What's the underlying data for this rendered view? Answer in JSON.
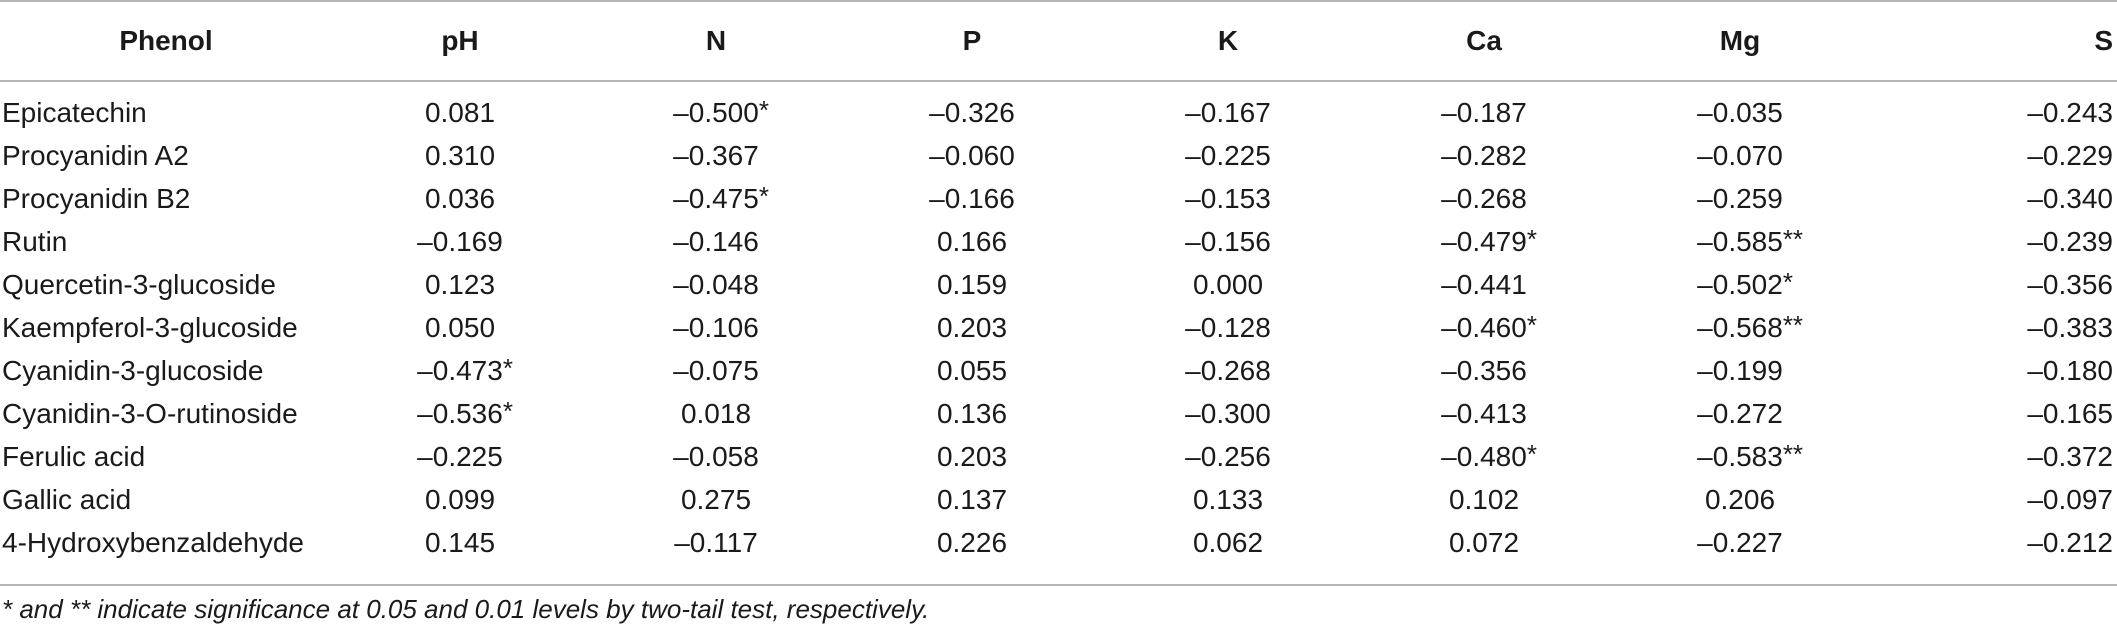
{
  "table": {
    "headers": [
      "Phenol",
      "pH",
      "N",
      "P",
      "K",
      "Ca",
      "Mg",
      "S"
    ],
    "rows": [
      {
        "name": "Epicatechin",
        "values": [
          "0.081",
          "–0.500",
          "–0.326",
          "–0.167",
          "–0.187",
          "–0.035",
          "–0.243"
        ],
        "marks": [
          "",
          "*",
          "",
          "",
          "",
          "",
          ""
        ]
      },
      {
        "name": "Procyanidin A2",
        "values": [
          "0.310",
          "–0.367",
          "–0.060",
          "–0.225",
          "–0.282",
          "–0.070",
          "–0.229"
        ],
        "marks": [
          "",
          "",
          "",
          "",
          "",
          "",
          ""
        ]
      },
      {
        "name": "Procyanidin B2",
        "values": [
          "0.036",
          "–0.475",
          "–0.166",
          "–0.153",
          "–0.268",
          "–0.259",
          "–0.340"
        ],
        "marks": [
          "",
          "*",
          "",
          "",
          "",
          "",
          ""
        ]
      },
      {
        "name": "Rutin",
        "values": [
          "–0.169",
          "–0.146",
          "0.166",
          "–0.156",
          "–0.479",
          "–0.585",
          "–0.239"
        ],
        "marks": [
          "",
          "",
          "",
          "",
          "*",
          "**",
          ""
        ]
      },
      {
        "name": "Quercetin-3-glucoside",
        "values": [
          "0.123",
          "–0.048",
          "0.159",
          "0.000",
          "–0.441",
          "–0.502",
          "–0.356"
        ],
        "marks": [
          "",
          "",
          "",
          "",
          "",
          "*",
          ""
        ]
      },
      {
        "name": "Kaempferol-3-glucoside",
        "values": [
          "0.050",
          "–0.106",
          "0.203",
          "–0.128",
          "–0.460",
          "–0.568",
          "–0.383"
        ],
        "marks": [
          "",
          "",
          "",
          "",
          "*",
          "**",
          ""
        ]
      },
      {
        "name": "Cyanidin-3-glucoside",
        "values": [
          "–0.473",
          "–0.075",
          "0.055",
          "–0.268",
          "–0.356",
          "–0.199",
          "–0.180"
        ],
        "marks": [
          "*",
          "",
          "",
          "",
          "",
          "",
          ""
        ]
      },
      {
        "name": "Cyanidin-3-O-rutinoside",
        "values": [
          "–0.536",
          "0.018",
          "0.136",
          "–0.300",
          "–0.413",
          "–0.272",
          "–0.165"
        ],
        "marks": [
          "*",
          "",
          "",
          "",
          "",
          "",
          ""
        ]
      },
      {
        "name": "Ferulic acid",
        "values": [
          "–0.225",
          "–0.058",
          "0.203",
          "–0.256",
          "–0.480",
          "–0.583",
          "–0.372"
        ],
        "marks": [
          "",
          "",
          "",
          "",
          "*",
          "**",
          ""
        ]
      },
      {
        "name": "Gallic acid",
        "values": [
          "0.099",
          "0.275",
          "0.137",
          "0.133",
          "0.102",
          "0.206",
          "–0.097"
        ],
        "marks": [
          "",
          "",
          "",
          "",
          "",
          "",
          ""
        ]
      },
      {
        "name": "4-Hydroxybenzaldehyde",
        "values": [
          "0.145",
          "–0.117",
          "0.226",
          "0.062",
          "0.072",
          "–0.227",
          "–0.212"
        ],
        "marks": [
          "",
          "",
          "",
          "",
          "",
          "",
          ""
        ]
      }
    ]
  },
  "footnote": "* and ** indicate significance at 0.05 and 0.01 levels by two-tail test, respectively."
}
